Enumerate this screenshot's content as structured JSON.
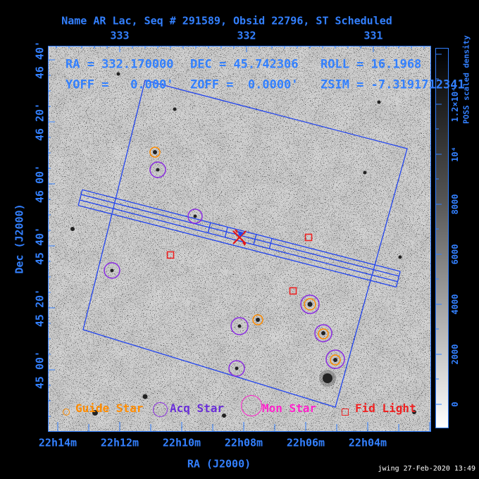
{
  "title": "Name AR Lac, Seq # 291589, Obsid 22796, ST Scheduled",
  "info": {
    "ra": "RA = 332.170000",
    "dec": "DEC = 45.742306",
    "roll": "ROLL = 16.1968",
    "yoff": "YOFF =   0.000'",
    "zoff": "ZOFF =  0.0000'",
    "zsim": "ZSIM = -7.3191712341"
  },
  "axes": {
    "top": {
      "labels": [
        "333",
        "332",
        "331"
      ]
    },
    "bottom": {
      "title": "RA (J2000)",
      "labels": [
        "22h14m",
        "22h12m",
        "22h10m",
        "22h08m",
        "22h06m",
        "22h04m"
      ]
    },
    "left": {
      "title": "Dec (J2000)",
      "labels": [
        "46 40'",
        "46 20'",
        "46 00'",
        "45 40'",
        "45 20'",
        "45 00'"
      ]
    }
  },
  "colorbar": {
    "title": "POSS scaled density",
    "tick_labels": [
      "1.2×10⁴",
      "10⁴",
      "8000",
      "6000",
      "4000",
      "2000",
      "0"
    ]
  },
  "legend": {
    "guide": {
      "label": "Guide Star",
      "color": "#ff8c00"
    },
    "acq": {
      "label": "Acq Star",
      "color": "#8a2be2"
    },
    "mon": {
      "label": "Mon Star",
      "color": "#ff22cc"
    },
    "fid": {
      "label": "Fid Light",
      "color": "#ee2222"
    }
  },
  "markers": {
    "target": {
      "x": 340,
      "y": 337
    },
    "guide_stars": [
      [
        220,
        216,
        7
      ],
      [
        366,
        454,
        7
      ],
      [
        440,
        432,
        8
      ],
      [
        459,
        474,
        7
      ],
      [
        476,
        511,
        7
      ]
    ],
    "acq_stars": [
      [
        224,
        241,
        11
      ],
      [
        277,
        307,
        10
      ],
      [
        159,
        384,
        11
      ],
      [
        340,
        463,
        12
      ],
      [
        440,
        432,
        13
      ],
      [
        459,
        473,
        12
      ],
      [
        476,
        510,
        13
      ],
      [
        336,
        523,
        11
      ]
    ],
    "fid_lights": [
      [
        242,
        362
      ],
      [
        438,
        337
      ],
      [
        416,
        413
      ]
    ]
  },
  "footer": {
    "credit": "jwing 27-Feb-2020 13:49"
  },
  "colors": {
    "axis_blue": "#3380ff",
    "fov_blue": "#2244ee",
    "guide_orange": "#ff8c00",
    "acq_purple": "#8a2be2",
    "mon_magenta": "#ff22cc",
    "fid_red": "#ee2222",
    "target_red": "#e31515"
  },
  "chart_data": {
    "type": "scatter",
    "title": "Name AR Lac, Seq # 291589, Obsid 22796, ST Scheduled",
    "xlabel": "RA (J2000)",
    "ylabel": "Dec (J2000)",
    "x_ticks": [
      "22h14m",
      "22h12m",
      "22h10m",
      "22h08m",
      "22h06m",
      "22h04m"
    ],
    "y_ticks": [
      "46 40'",
      "46 20'",
      "46 00'",
      "45 40'",
      "45 20'",
      "45 00'"
    ],
    "colorbar_scale": {
      "label": "POSS scaled density",
      "range": [
        0,
        14000
      ],
      "ticks": [
        0,
        2000,
        4000,
        6000,
        8000,
        10000,
        12000
      ]
    },
    "series": [
      {
        "name": "Target AR Lac",
        "marker": "red-x",
        "points": [
          {
            "ra": "22h08.1m",
            "dec_deg": 45.74
          }
        ]
      },
      {
        "name": "Guide Star",
        "marker": "orange-circle",
        "points": [
          {
            "ra": "22h10.9m",
            "dec_deg": 46.17
          },
          {
            "ra": "22h07.5m",
            "dec_deg": 45.27
          },
          {
            "ra": "22h05.9m",
            "dec_deg": 45.35
          },
          {
            "ra": "22h05.4m",
            "dec_deg": 45.19
          },
          {
            "ra": "22h05.0m",
            "dec_deg": 45.05
          }
        ]
      },
      {
        "name": "Acq Star",
        "marker": "purple-circle",
        "points": [
          {
            "ra": "22h10.8m",
            "dec_deg": 46.08
          },
          {
            "ra": "22h09.6m",
            "dec_deg": 45.82
          },
          {
            "ra": "22h12.3m",
            "dec_deg": 45.53
          },
          {
            "ra": "22h08.1m",
            "dec_deg": 45.23
          },
          {
            "ra": "22h05.9m",
            "dec_deg": 45.35
          },
          {
            "ra": "22h05.4m",
            "dec_deg": 45.19
          },
          {
            "ra": "22h05.0m",
            "dec_deg": 45.05
          },
          {
            "ra": "22h08.2m",
            "dec_deg": 45.01
          }
        ]
      },
      {
        "name": "Fid Light",
        "marker": "red-square",
        "points": [
          {
            "ra": "22h10.4m",
            "dec_deg": 45.62
          },
          {
            "ra": "22h05.9m",
            "dec_deg": 45.71
          },
          {
            "ra": "22h06.4m",
            "dec_deg": 45.43
          }
        ]
      }
    ]
  }
}
